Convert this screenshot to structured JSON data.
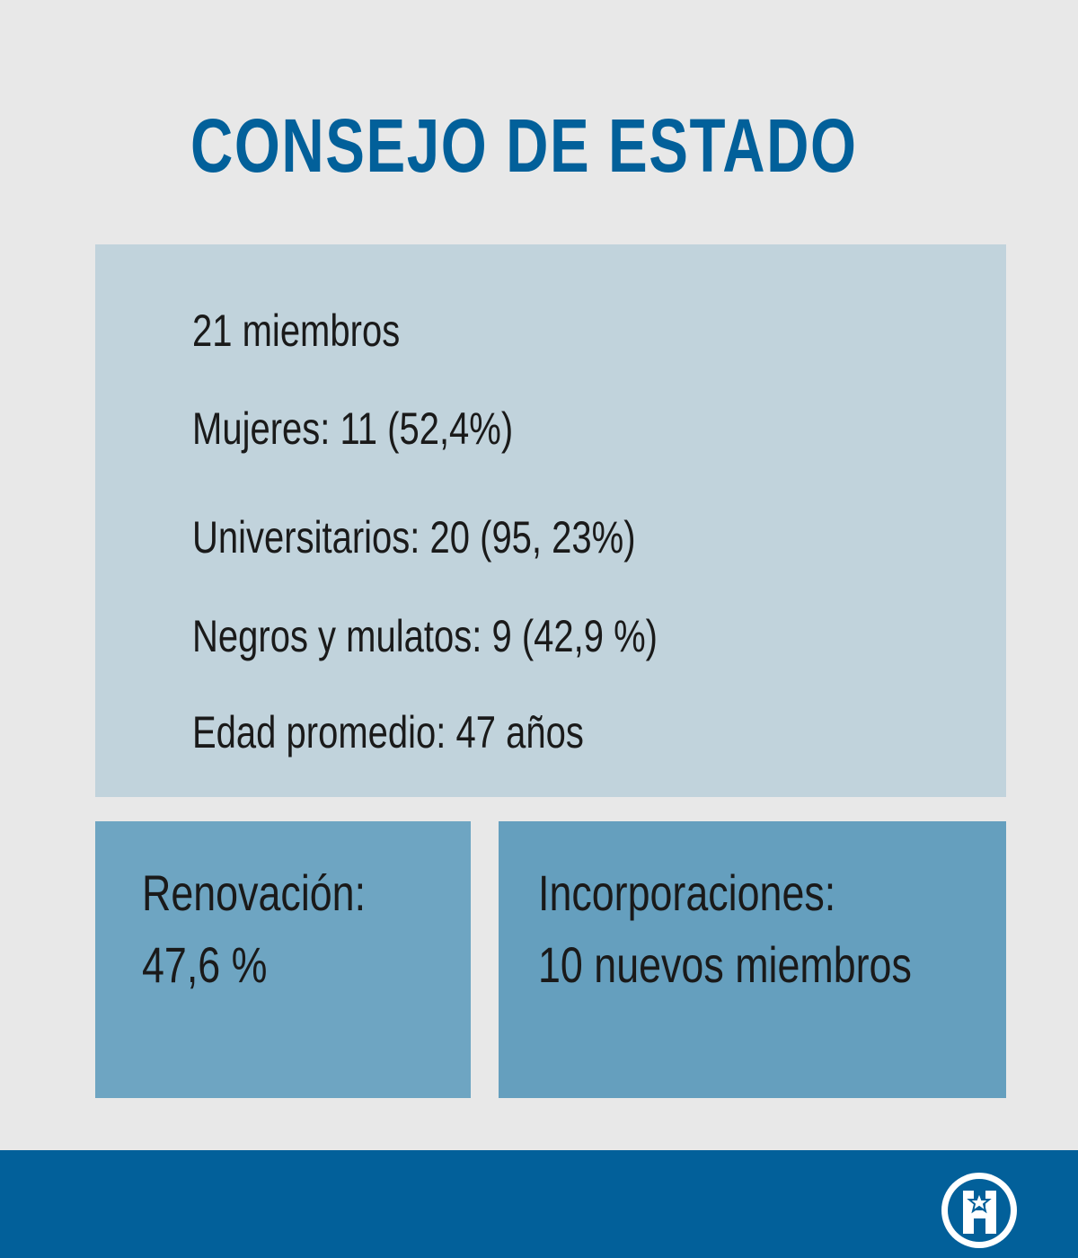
{
  "title": "CONSEJO DE ESTADO",
  "stats": [
    "21 miembros",
    "Mujeres: 11 (52,4%)",
    "Universitarios: 20 (95, 23%)",
    "Negros y mulatos: 9 (42,9 %)",
    "Edad promedio: 47 años"
  ],
  "renovacion": {
    "label": "Renovación:",
    "value": "47,6 %"
  },
  "incorporaciones": {
    "label": "Incorporaciones:",
    "value": "10 nuevos miembros"
  },
  "footer": {
    "logo_icon": "publisher-logo-icon"
  },
  "colors": {
    "background": "#e8e8e8",
    "title": "#02609a",
    "stats_panel": "#c1d3dc",
    "box_renovacion": "#6ea5c2",
    "box_incorporaciones": "#659fbe",
    "footer": "#02609a"
  }
}
